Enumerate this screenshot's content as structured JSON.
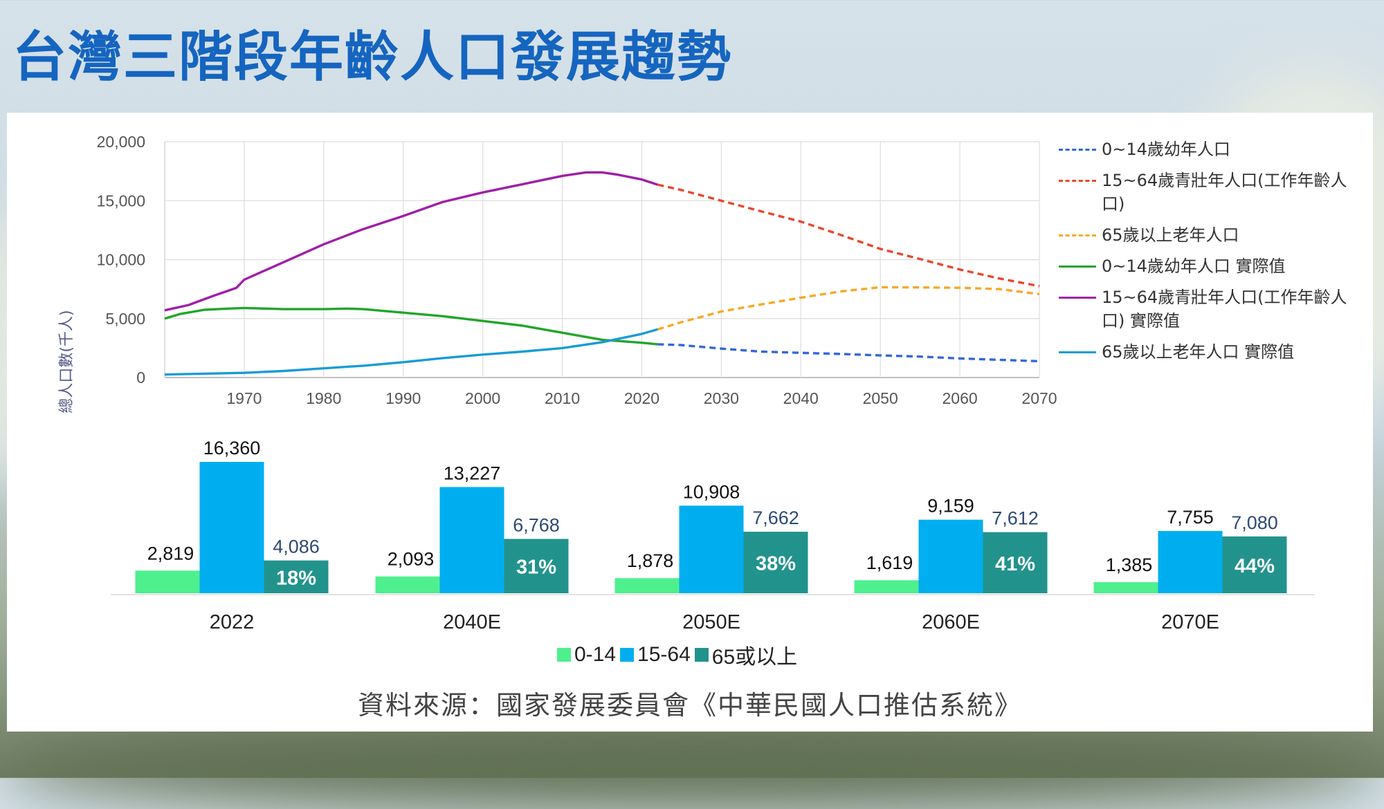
{
  "title": "台灣三階段年齡人口發展趨勢",
  "colors": {
    "title": "#1565c0",
    "young_proj": "#3366dd",
    "working_proj": "#e8472c",
    "old_proj": "#f9a825",
    "young_actual": "#22a52a",
    "working_actual": "#a01ea8",
    "old_actual": "#1a9bd7",
    "bar_young": "#4ef08e",
    "bar_working": "#00aeef",
    "bar_old": "#22938c"
  },
  "chart_data": [
    {
      "type": "line",
      "ylabel": "總人口數(千人)",
      "xlim": [
        1960,
        2070
      ],
      "ylim": [
        0,
        20000
      ],
      "y_ticks": [
        "0",
        "5,000",
        "10,000",
        "15,000",
        "20,000"
      ],
      "y_tick_values": [
        0,
        5000,
        10000,
        15000,
        20000
      ],
      "x_ticks": [
        "1970",
        "1980",
        "1990",
        "2000",
        "2010",
        "2020",
        "2030",
        "2040",
        "2050",
        "2060",
        "2070"
      ],
      "x_tick_values": [
        1970,
        1980,
        1990,
        2000,
        2010,
        2020,
        2030,
        2040,
        2050,
        2060,
        2070
      ],
      "grid": true,
      "legend_position": "right",
      "series": [
        {
          "name": "0~14歲幼年人口",
          "style": "dashed",
          "color_key": "young_proj",
          "x": [
            2022,
            2025,
            2030,
            2035,
            2040,
            2045,
            2050,
            2055,
            2060,
            2065,
            2070
          ],
          "y": [
            2819,
            2750,
            2450,
            2200,
            2093,
            2000,
            1878,
            1780,
            1619,
            1500,
            1385
          ]
        },
        {
          "name": "15~64歲青壯年人口(工作年齡人口)",
          "style": "dashed",
          "color_key": "working_proj",
          "x": [
            2022,
            2025,
            2030,
            2035,
            2040,
            2045,
            2050,
            2055,
            2060,
            2065,
            2070
          ],
          "y": [
            16360,
            15900,
            15000,
            14100,
            13227,
            12100,
            10908,
            10050,
            9159,
            8400,
            7755
          ]
        },
        {
          "name": "65歲以上老年人口",
          "style": "dashed",
          "color_key": "old_proj",
          "x": [
            2022,
            2025,
            2030,
            2035,
            2040,
            2045,
            2050,
            2055,
            2060,
            2065,
            2070
          ],
          "y": [
            4086,
            4700,
            5600,
            6200,
            6768,
            7300,
            7662,
            7640,
            7612,
            7500,
            7080
          ]
        },
        {
          "name": "0~14歲幼年人口 實際值",
          "style": "solid",
          "color_key": "young_actual",
          "x": [
            1960,
            1962,
            1965,
            1968,
            1970,
            1975,
            1980,
            1983,
            1985,
            1990,
            1995,
            2000,
            2005,
            2010,
            2015,
            2020,
            2022
          ],
          "y": [
            5000,
            5400,
            5750,
            5850,
            5900,
            5800,
            5800,
            5850,
            5800,
            5500,
            5200,
            4800,
            4400,
            3800,
            3200,
            2950,
            2819
          ]
        },
        {
          "name": "15~64歲青壯年人口(工作年齡人口) 實際值",
          "style": "solid",
          "color_key": "working_actual",
          "x": [
            1960,
            1963,
            1966,
            1969,
            1970,
            1975,
            1980,
            1985,
            1990,
            1995,
            2000,
            2005,
            2010,
            2013,
            2015,
            2017,
            2020,
            2022
          ],
          "y": [
            5700,
            6150,
            6900,
            7600,
            8300,
            9800,
            11300,
            12600,
            13700,
            14900,
            15700,
            16400,
            17100,
            17400,
            17400,
            17200,
            16800,
            16360
          ]
        },
        {
          "name": "65歲以上老年人口 實際值",
          "style": "solid",
          "color_key": "old_actual",
          "x": [
            1960,
            1965,
            1970,
            1975,
            1980,
            1985,
            1990,
            1995,
            2000,
            2005,
            2010,
            2015,
            2020,
            2022
          ],
          "y": [
            250,
            330,
            400,
            560,
            780,
            1000,
            1300,
            1650,
            1950,
            2200,
            2500,
            3000,
            3700,
            4086
          ]
        }
      ]
    },
    {
      "type": "bar",
      "categories": [
        "2022",
        "2040E",
        "2050E",
        "2060E",
        "2070E"
      ],
      "series": [
        {
          "name": "0-14",
          "color_key": "bar_young",
          "values": [
            2819,
            2093,
            1878,
            1619,
            1385
          ],
          "labels": [
            "2,819",
            "2,093",
            "1,878",
            "1,619",
            "1,385"
          ]
        },
        {
          "name": "15-64",
          "color_key": "bar_working",
          "values": [
            16360,
            13227,
            10908,
            9159,
            7755
          ],
          "labels": [
            "16,360",
            "13,227",
            "10,908",
            "9,159",
            "7,755"
          ]
        },
        {
          "name": "65或以上",
          "color_key": "bar_old",
          "values": [
            4086,
            6768,
            7662,
            7612,
            7080
          ],
          "labels": [
            "4,086",
            "6,768",
            "7,662",
            "7,612",
            "7,080"
          ],
          "share_labels": [
            "18%",
            "31%",
            "38%",
            "41%",
            "44%"
          ]
        }
      ],
      "legend_position": "bottom"
    }
  ],
  "legend": [
    {
      "text": "0~14歲幼年人口",
      "color_key": "young_proj",
      "style": "dashed"
    },
    {
      "text": "15~64歲青壯年人口(工作年齡人口)",
      "color_key": "working_proj",
      "style": "dashed"
    },
    {
      "text": "65歲以上老年人口",
      "color_key": "old_proj",
      "style": "dashed"
    },
    {
      "text": "0~14歲幼年人口 實際值",
      "color_key": "young_actual",
      "style": "solid"
    },
    {
      "text": "15~64歲青壯年人口(工作年齡人口) 實際值",
      "color_key": "working_actual",
      "style": "solid"
    },
    {
      "text": "65歲以上老年人口 實際值",
      "color_key": "old_actual",
      "style": "solid"
    }
  ],
  "bar_legend": [
    {
      "text": "0-14",
      "color_key": "bar_young"
    },
    {
      "text": "15-64",
      "color_key": "bar_working"
    },
    {
      "text": "65或以上",
      "color_key": "bar_old"
    }
  ],
  "source": "資料來源：國家發展委員會《中華民國人口推估系統》"
}
